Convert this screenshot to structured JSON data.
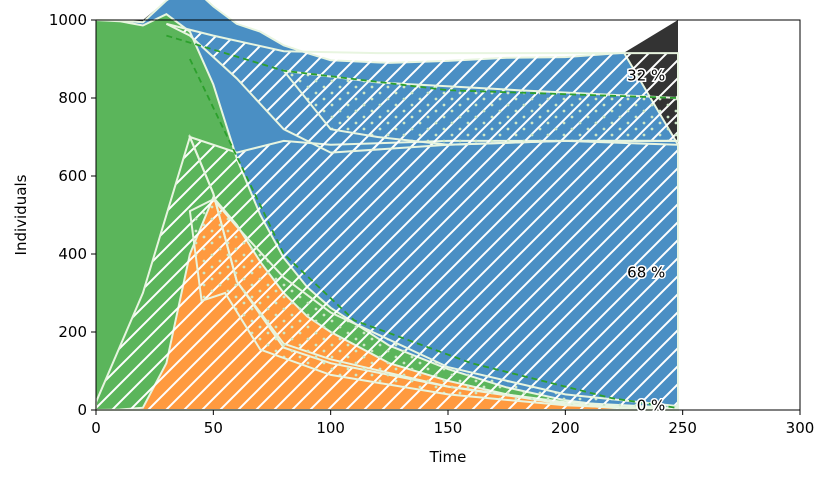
{
  "chart_data": {
    "type": "area",
    "xlabel": "Time",
    "ylabel": "Individuals",
    "xlim": [
      0,
      300
    ],
    "ylim": [
      0,
      1000
    ],
    "xticks": [
      0,
      50,
      100,
      150,
      200,
      250,
      300
    ],
    "yticks": [
      0,
      200,
      400,
      600,
      800,
      1000
    ],
    "grid": false,
    "stack_order_bottom_to_top": [
      "orange",
      "green",
      "blue",
      "dark"
    ],
    "x": [
      0,
      10,
      20,
      30,
      40,
      50,
      60,
      70,
      80,
      90,
      100,
      125,
      150,
      175,
      200,
      225,
      248
    ],
    "series": [
      {
        "color": "#ff9a3f",
        "values": [
          0,
          1,
          6,
          120,
          400,
          545,
          475,
          380,
          300,
          240,
          200,
          120,
          75,
          40,
          15,
          3,
          0
        ]
      },
      {
        "color": "#5bb55b",
        "values": [
          1000,
          996,
          980,
          895,
          570,
          290,
          170,
          120,
          90,
          75,
          62,
          45,
          30,
          18,
          10,
          3,
          0
        ]
      },
      {
        "color": "#4a8fc4",
        "values": [
          0,
          2,
          8,
          35,
          120,
          200,
          345,
          470,
          545,
          600,
          635,
          725,
          790,
          845,
          880,
          910,
          680
        ]
      },
      {
        "color": "#333333",
        "values": [
          0,
          1,
          6,
          0,
          0,
          0,
          0,
          0,
          0,
          0,
          0,
          0,
          0,
          0,
          0,
          0,
          320
        ]
      }
    ],
    "annotations": [
      {
        "text": "32 %",
        "x": 246,
        "y": 858
      },
      {
        "text": "68 %",
        "x": 246,
        "y": 353
      },
      {
        "text": "0 %",
        "x": 246,
        "y": 12
      }
    ]
  }
}
